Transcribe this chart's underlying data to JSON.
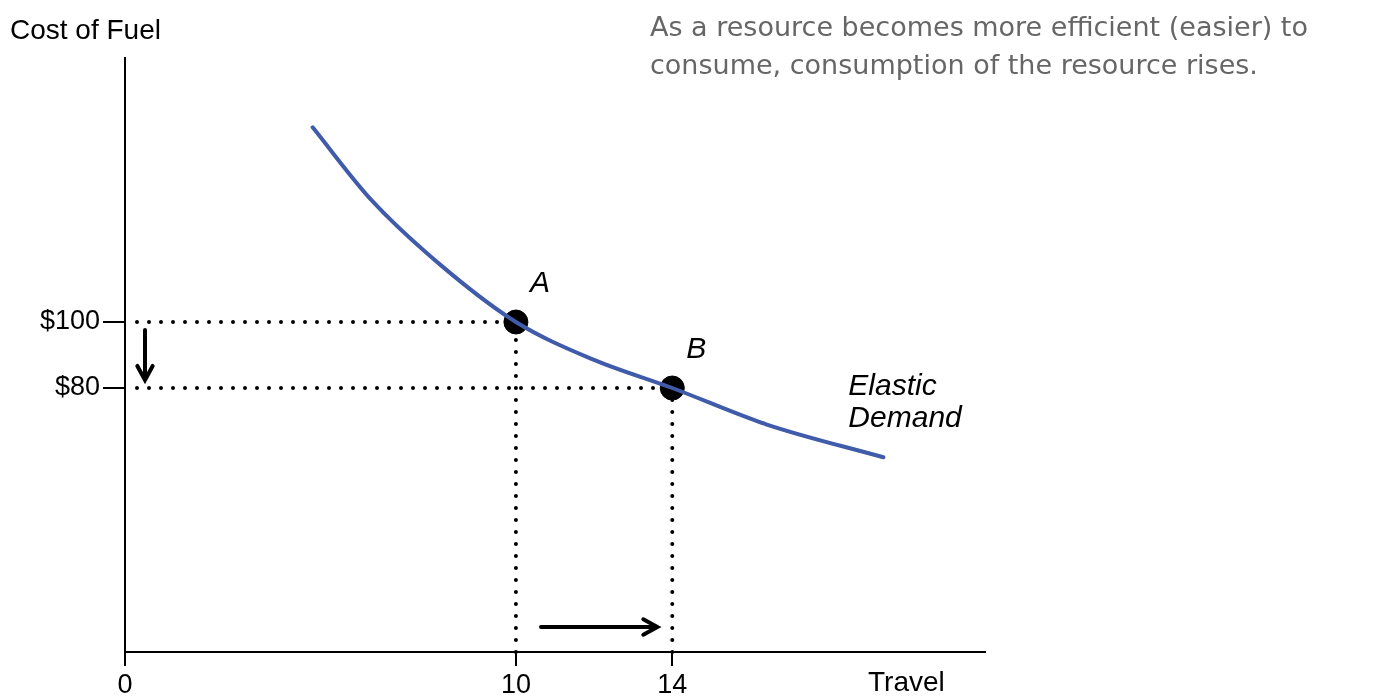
{
  "chart_data": {
    "type": "line",
    "xlabel": "Travel",
    "ylabel": "Cost of Fuel",
    "xlim": [
      0,
      22
    ],
    "ylim": [
      0,
      180
    ],
    "xticks": [
      0,
      10,
      14
    ],
    "yticks": [
      {
        "value": 80,
        "label": "$80"
      },
      {
        "value": 100,
        "label": "$100"
      }
    ],
    "series": [
      {
        "name": "Elastic Demand",
        "color": "#3f5ba9",
        "marker": "none",
        "x": [
          4.8,
          6.3,
          8.1,
          10,
          11.9,
          14,
          16.4,
          19.4
        ],
        "values": [
          159,
          137,
          117,
          100,
          89,
          80,
          69,
          59
        ]
      },
      {
        "type": "scatter",
        "color": "#000000",
        "marker": "circle",
        "x": [
          10,
          14
        ],
        "values": [
          100,
          80
        ]
      }
    ],
    "ref_lines": [
      {
        "axis": "y",
        "value": 100,
        "color": "#000000",
        "line_style": "dotted"
      },
      {
        "axis": "y",
        "value": 80,
        "color": "#000000",
        "line_style": "dotted"
      },
      {
        "axis": "x",
        "value": 10,
        "color": "#000000",
        "line_style": "dotted"
      },
      {
        "axis": "x",
        "value": 14,
        "color": "#000000",
        "line_style": "dotted"
      }
    ],
    "annotations": [
      "As a resource becomes more efficient (easier) to consume, consumption of the resource rises.",
      {
        "text": "A",
        "x": 10,
        "y": 100
      },
      {
        "text": "B",
        "x": 14,
        "y": 80
      }
    ]
  }
}
